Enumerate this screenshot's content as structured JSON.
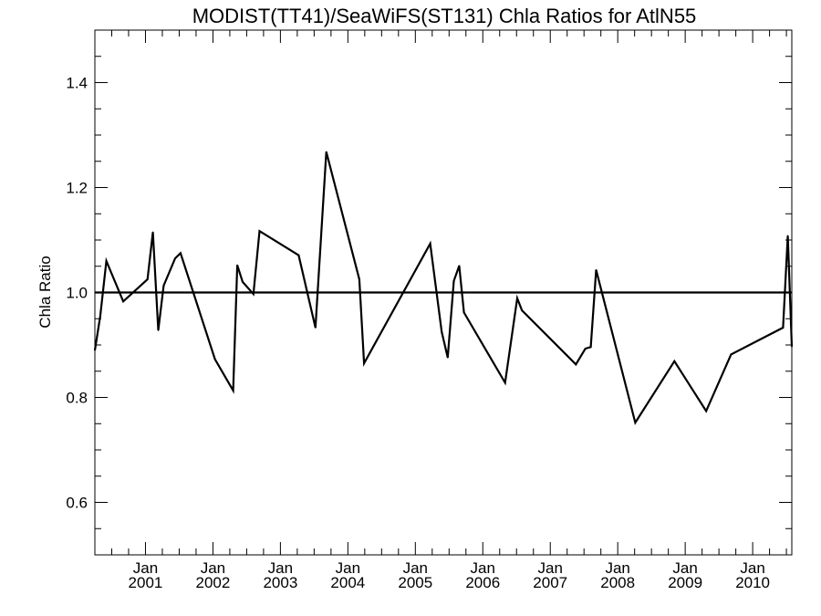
{
  "chart_data": {
    "type": "line",
    "title": "MODIST(TT41)/SeaWiFS(ST131)  Chla Ratios for AtlN55",
    "xlabel": "",
    "ylabel": "Chla Ratio",
    "ylim": [
      0.5,
      1.5
    ],
    "yticks": [
      0.6,
      0.8,
      1.0,
      1.2,
      1.4
    ],
    "ytick_labels": [
      "0.6",
      "0.8",
      "1.0",
      "1.2",
      "1.4"
    ],
    "xlim": [
      2000.25,
      2010.58
    ],
    "xticks": [
      {
        "x": 2001.0,
        "month": "Jan",
        "year": "2001"
      },
      {
        "x": 2002.0,
        "month": "Jan",
        "year": "2002"
      },
      {
        "x": 2003.0,
        "month": "Jan",
        "year": "2003"
      },
      {
        "x": 2004.0,
        "month": "Jan",
        "year": "2004"
      },
      {
        "x": 2005.0,
        "month": "Jan",
        "year": "2005"
      },
      {
        "x": 2006.0,
        "month": "Jan",
        "year": "2006"
      },
      {
        "x": 2007.0,
        "month": "Jan",
        "year": "2007"
      },
      {
        "x": 2008.0,
        "month": "Jan",
        "year": "2008"
      },
      {
        "x": 2009.0,
        "month": "Jan",
        "year": "2009"
      },
      {
        "x": 2010.0,
        "month": "Jan",
        "year": "2010"
      }
    ],
    "reference_line": 1.0,
    "grid": false,
    "series": [
      {
        "x": [
          2000.25,
          2000.33,
          2000.42,
          2000.67,
          2001.03,
          2001.11,
          2001.19,
          2001.27,
          2001.44,
          2001.52,
          2002.03,
          2002.3,
          2002.36,
          2002.44,
          2002.6,
          2002.69,
          2003.27,
          2003.52,
          2003.68,
          2004.17,
          2004.24,
          2005.22,
          2005.39,
          2005.48,
          2005.57,
          2005.65,
          2005.72,
          2006.33,
          2006.51,
          2006.58,
          2007.38,
          2007.52,
          2007.6,
          2007.68,
          2008.26,
          2008.84,
          2009.31,
          2009.68,
          2010.45,
          2010.52,
          2010.58
        ],
        "y": [
          0.89,
          0.955,
          1.06,
          0.983,
          1.025,
          1.115,
          0.928,
          1.013,
          1.065,
          1.075,
          0.873,
          0.813,
          1.052,
          1.02,
          0.997,
          1.117,
          1.071,
          0.933,
          1.268,
          1.025,
          0.865,
          1.093,
          0.925,
          0.876,
          1.022,
          1.051,
          0.962,
          0.828,
          0.989,
          0.966,
          0.863,
          0.893,
          0.896,
          1.043,
          0.752,
          0.869,
          0.774,
          0.882,
          0.933,
          1.108,
          0.897
        ]
      }
    ]
  }
}
